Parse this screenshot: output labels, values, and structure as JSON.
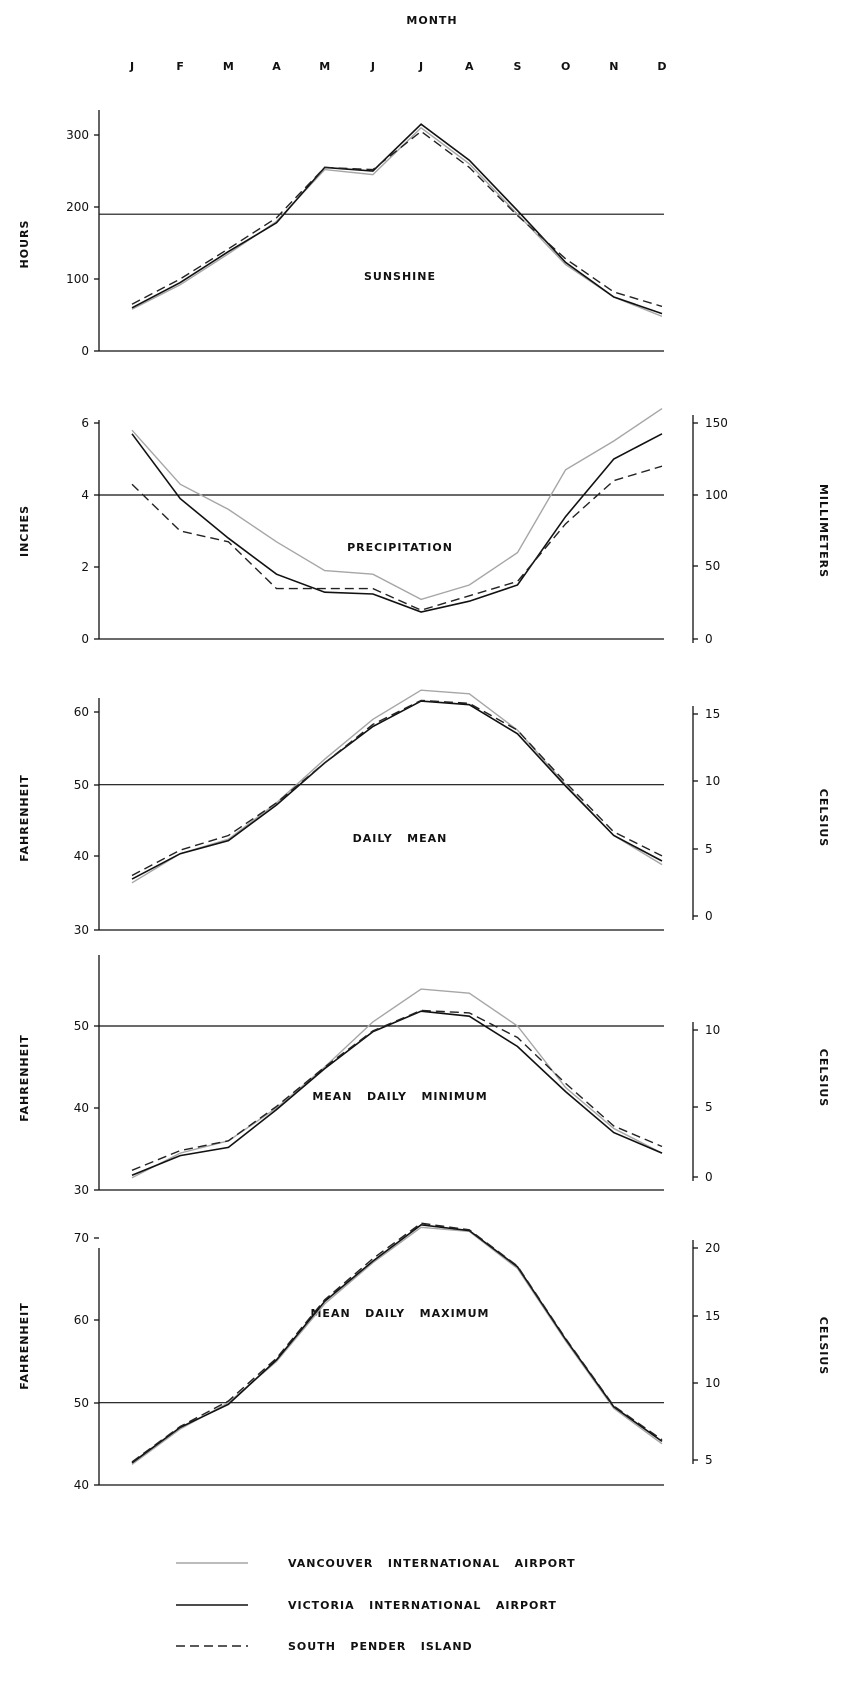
{
  "header": {
    "month_label": "MONTH"
  },
  "months": [
    "J",
    "F",
    "M",
    "A",
    "M",
    "J",
    "J",
    "A",
    "S",
    "O",
    "N",
    "D"
  ],
  "legend": [
    {
      "key": "van",
      "label": "VANCOUVER   INTERNATIONAL   AIRPORT",
      "style": "dotted-light"
    },
    {
      "key": "vic",
      "label": "VICTORIA   INTERNATIONAL   AIRPORT",
      "style": "solid"
    },
    {
      "key": "pen",
      "label": "SOUTH   PENDER   ISLAND",
      "style": "dashed"
    }
  ],
  "chart_data": [
    {
      "type": "line",
      "title": "SUNSHINE",
      "ylabel": "HOURS",
      "ylabel_right": "",
      "ylim": [
        0,
        330
      ],
      "left_ticks": [
        "0",
        "100",
        "200",
        "300"
      ],
      "right_ticks": [],
      "reference_line": 190,
      "categories": [
        "J",
        "F",
        "M",
        "A",
        "M",
        "J",
        "J",
        "A",
        "S",
        "O",
        "N",
        "D"
      ],
      "series": [
        {
          "key": "van",
          "name": "VANCOUVER   INTERNATIONAL   AIRPORT",
          "values": [
            58,
            92,
            135,
            180,
            252,
            245,
            310,
            260,
            190,
            120,
            75,
            48
          ]
        },
        {
          "key": "vic",
          "name": "VICTORIA   INTERNATIONAL   AIRPORT",
          "values": [
            60,
            95,
            138,
            178,
            255,
            250,
            315,
            265,
            195,
            123,
            75,
            52
          ]
        },
        {
          "key": "pen",
          "name": "SOUTH   PENDER   ISLAND",
          "values": [
            65,
            100,
            142,
            185,
            255,
            252,
            305,
            255,
            188,
            128,
            82,
            62
          ]
        }
      ]
    },
    {
      "type": "line",
      "title": "PRECIPITATION",
      "ylabel": "INCHES",
      "ylabel_right": "MILLIMETERS",
      "ylim": [
        0,
        6.3
      ],
      "left_ticks": [
        "0",
        "2",
        "4",
        "6"
      ],
      "right_ticks": [
        "0",
        "50",
        "100",
        "150"
      ],
      "reference_line": 4,
      "categories": [
        "J",
        "F",
        "M",
        "A",
        "M",
        "J",
        "J",
        "A",
        "S",
        "O",
        "N",
        "D"
      ],
      "series": [
        {
          "key": "van",
          "name": "VANCOUVER   INTERNATIONAL   AIRPORT",
          "values": [
            5.8,
            4.3,
            3.6,
            2.7,
            1.9,
            1.8,
            1.1,
            1.5,
            2.4,
            4.7,
            5.5,
            6.4
          ]
        },
        {
          "key": "vic",
          "name": "VICTORIA   INTERNATIONAL   AIRPORT",
          "values": [
            5.7,
            3.9,
            2.8,
            1.8,
            1.3,
            1.25,
            0.75,
            1.05,
            1.5,
            3.4,
            5.0,
            5.7
          ]
        },
        {
          "key": "pen",
          "name": "SOUTH   PENDER   ISLAND",
          "values": [
            4.3,
            3.0,
            2.7,
            1.4,
            1.4,
            1.4,
            0.8,
            1.2,
            1.6,
            3.2,
            4.4,
            4.8
          ]
        }
      ]
    },
    {
      "type": "line",
      "title": "DAILY   MEAN",
      "ylabel": "FAHRENHEIT",
      "ylabel_right": "CELSIUS",
      "ylim": [
        30,
        62
      ],
      "left_ticks": [
        "30",
        "40",
        "50",
        "60"
      ],
      "right_ticks": [
        "0",
        "5",
        "10",
        "15"
      ],
      "reference_line": 50,
      "categories": [
        "J",
        "F",
        "M",
        "A",
        "M",
        "J",
        "J",
        "A",
        "S",
        "O",
        "N",
        "D"
      ],
      "series": [
        {
          "key": "van",
          "name": "VANCOUVER   INTERNATIONAL   AIRPORT",
          "values": [
            36.5,
            40.5,
            42.5,
            47.5,
            53.5,
            59,
            63,
            62.5,
            57.5,
            50,
            43,
            39
          ]
        },
        {
          "key": "vic",
          "name": "VICTORIA   INTERNATIONAL   AIRPORT",
          "values": [
            37,
            40.5,
            42.3,
            47.2,
            53,
            58,
            61.5,
            61,
            57,
            49.8,
            43,
            39.5
          ]
        },
        {
          "key": "pen",
          "name": "SOUTH   PENDER   ISLAND",
          "values": [
            37.5,
            41,
            43,
            47.5,
            53,
            58.3,
            61.6,
            61.2,
            57.5,
            50.3,
            43.5,
            40.2
          ]
        }
      ]
    },
    {
      "type": "line",
      "title": "MEAN   DAILY   MINIMUM",
      "ylabel": "FAHRENHEIT",
      "ylabel_right": "CELSIUS",
      "ylim": [
        30,
        52
      ],
      "left_ticks": [
        "30",
        "40",
        "50"
      ],
      "right_ticks": [
        "0",
        "5",
        "10"
      ],
      "reference_line": 50,
      "categories": [
        "J",
        "F",
        "M",
        "A",
        "M",
        "J",
        "J",
        "A",
        "S",
        "O",
        "N",
        "D"
      ],
      "series": [
        {
          "key": "van",
          "name": "VANCOUVER   INTERNATIONAL   AIRPORT",
          "values": [
            31.5,
            34.5,
            36,
            40,
            45,
            50.5,
            54.5,
            54,
            50,
            42.5,
            37.5,
            34.5
          ]
        },
        {
          "key": "vic",
          "name": "VICTORIA   INTERNATIONAL   AIRPORT",
          "values": [
            31.8,
            34.2,
            35.2,
            39.8,
            44.8,
            49.3,
            51.8,
            51.2,
            47.5,
            42,
            37,
            34.5
          ]
        },
        {
          "key": "pen",
          "name": "SOUTH   PENDER   ISLAND",
          "values": [
            32.4,
            34.8,
            36,
            40.2,
            45,
            49.4,
            51.9,
            51.6,
            48.6,
            43,
            37.8,
            35.3
          ]
        }
      ]
    },
    {
      "type": "line",
      "title": "MEAN   DAILY   MAXIMUM",
      "ylabel": "FAHRENHEIT",
      "ylabel_right": "CELSIUS",
      "ylim": [
        40,
        72
      ],
      "left_ticks": [
        "40",
        "50",
        "60",
        "70"
      ],
      "right_ticks": [
        "5",
        "10",
        "15",
        "20"
      ],
      "reference_line": 50,
      "categories": [
        "J",
        "F",
        "M",
        "A",
        "M",
        "J",
        "J",
        "A",
        "S",
        "O",
        "N",
        "D"
      ],
      "series": [
        {
          "key": "van",
          "name": "VANCOUVER   INTERNATIONAL   AIRPORT",
          "values": [
            42.5,
            46.8,
            50,
            55,
            62,
            67,
            71.3,
            70.8,
            66.3,
            57.5,
            49.3,
            45
          ]
        },
        {
          "key": "vic",
          "name": "VICTORIA   INTERNATIONAL   AIRPORT",
          "values": [
            42.7,
            47,
            49.8,
            55.2,
            62.3,
            67.2,
            71.6,
            70.9,
            66.5,
            57.7,
            49.5,
            45.3
          ]
        },
        {
          "key": "pen",
          "name": "SOUTH   PENDER   ISLAND",
          "values": [
            42.8,
            47.1,
            50.2,
            55.4,
            62.5,
            67.5,
            71.8,
            71,
            66.6,
            57.8,
            49.6,
            45.5
          ]
        }
      ]
    }
  ]
}
